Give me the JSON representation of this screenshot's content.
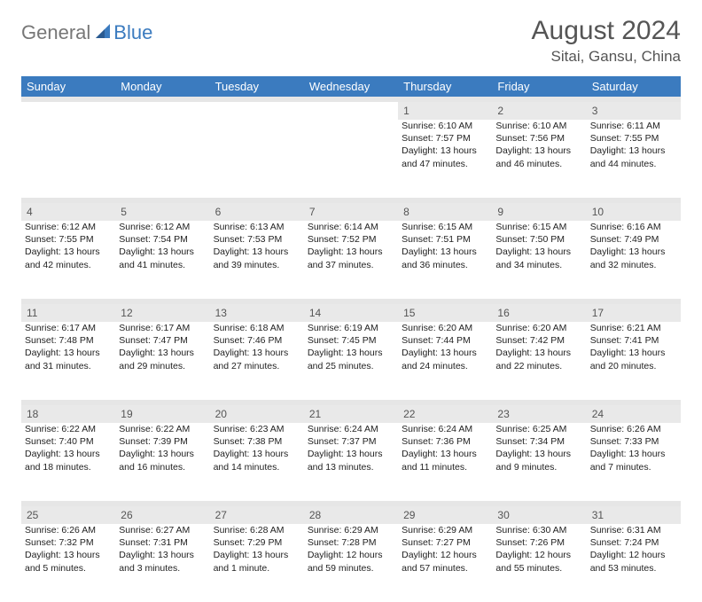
{
  "logo": {
    "general": "General",
    "blue": "Blue"
  },
  "title": "August 2024",
  "location": "Sitai, Gansu, China",
  "colors": {
    "header_bg": "#3b7bbf",
    "header_fg": "#ffffff",
    "spacer_bg": "#e6e6e6",
    "daynum_bg": "#e9e9e9",
    "text": "#333333"
  },
  "weekdays": [
    "Sunday",
    "Monday",
    "Tuesday",
    "Wednesday",
    "Thursday",
    "Friday",
    "Saturday"
  ],
  "weeks": [
    {
      "nums": [
        "",
        "",
        "",
        "",
        "1",
        "2",
        "3"
      ],
      "cells": [
        null,
        null,
        null,
        null,
        {
          "sunrise": "Sunrise: 6:10 AM",
          "sunset": "Sunset: 7:57 PM",
          "day1": "Daylight: 13 hours",
          "day2": "and 47 minutes."
        },
        {
          "sunrise": "Sunrise: 6:10 AM",
          "sunset": "Sunset: 7:56 PM",
          "day1": "Daylight: 13 hours",
          "day2": "and 46 minutes."
        },
        {
          "sunrise": "Sunrise: 6:11 AM",
          "sunset": "Sunset: 7:55 PM",
          "day1": "Daylight: 13 hours",
          "day2": "and 44 minutes."
        }
      ]
    },
    {
      "nums": [
        "4",
        "5",
        "6",
        "7",
        "8",
        "9",
        "10"
      ],
      "cells": [
        {
          "sunrise": "Sunrise: 6:12 AM",
          "sunset": "Sunset: 7:55 PM",
          "day1": "Daylight: 13 hours",
          "day2": "and 42 minutes."
        },
        {
          "sunrise": "Sunrise: 6:12 AM",
          "sunset": "Sunset: 7:54 PM",
          "day1": "Daylight: 13 hours",
          "day2": "and 41 minutes."
        },
        {
          "sunrise": "Sunrise: 6:13 AM",
          "sunset": "Sunset: 7:53 PM",
          "day1": "Daylight: 13 hours",
          "day2": "and 39 minutes."
        },
        {
          "sunrise": "Sunrise: 6:14 AM",
          "sunset": "Sunset: 7:52 PM",
          "day1": "Daylight: 13 hours",
          "day2": "and 37 minutes."
        },
        {
          "sunrise": "Sunrise: 6:15 AM",
          "sunset": "Sunset: 7:51 PM",
          "day1": "Daylight: 13 hours",
          "day2": "and 36 minutes."
        },
        {
          "sunrise": "Sunrise: 6:15 AM",
          "sunset": "Sunset: 7:50 PM",
          "day1": "Daylight: 13 hours",
          "day2": "and 34 minutes."
        },
        {
          "sunrise": "Sunrise: 6:16 AM",
          "sunset": "Sunset: 7:49 PM",
          "day1": "Daylight: 13 hours",
          "day2": "and 32 minutes."
        }
      ]
    },
    {
      "nums": [
        "11",
        "12",
        "13",
        "14",
        "15",
        "16",
        "17"
      ],
      "cells": [
        {
          "sunrise": "Sunrise: 6:17 AM",
          "sunset": "Sunset: 7:48 PM",
          "day1": "Daylight: 13 hours",
          "day2": "and 31 minutes."
        },
        {
          "sunrise": "Sunrise: 6:17 AM",
          "sunset": "Sunset: 7:47 PM",
          "day1": "Daylight: 13 hours",
          "day2": "and 29 minutes."
        },
        {
          "sunrise": "Sunrise: 6:18 AM",
          "sunset": "Sunset: 7:46 PM",
          "day1": "Daylight: 13 hours",
          "day2": "and 27 minutes."
        },
        {
          "sunrise": "Sunrise: 6:19 AM",
          "sunset": "Sunset: 7:45 PM",
          "day1": "Daylight: 13 hours",
          "day2": "and 25 minutes."
        },
        {
          "sunrise": "Sunrise: 6:20 AM",
          "sunset": "Sunset: 7:44 PM",
          "day1": "Daylight: 13 hours",
          "day2": "and 24 minutes."
        },
        {
          "sunrise": "Sunrise: 6:20 AM",
          "sunset": "Sunset: 7:42 PM",
          "day1": "Daylight: 13 hours",
          "day2": "and 22 minutes."
        },
        {
          "sunrise": "Sunrise: 6:21 AM",
          "sunset": "Sunset: 7:41 PM",
          "day1": "Daylight: 13 hours",
          "day2": "and 20 minutes."
        }
      ]
    },
    {
      "nums": [
        "18",
        "19",
        "20",
        "21",
        "22",
        "23",
        "24"
      ],
      "cells": [
        {
          "sunrise": "Sunrise: 6:22 AM",
          "sunset": "Sunset: 7:40 PM",
          "day1": "Daylight: 13 hours",
          "day2": "and 18 minutes."
        },
        {
          "sunrise": "Sunrise: 6:22 AM",
          "sunset": "Sunset: 7:39 PM",
          "day1": "Daylight: 13 hours",
          "day2": "and 16 minutes."
        },
        {
          "sunrise": "Sunrise: 6:23 AM",
          "sunset": "Sunset: 7:38 PM",
          "day1": "Daylight: 13 hours",
          "day2": "and 14 minutes."
        },
        {
          "sunrise": "Sunrise: 6:24 AM",
          "sunset": "Sunset: 7:37 PM",
          "day1": "Daylight: 13 hours",
          "day2": "and 13 minutes."
        },
        {
          "sunrise": "Sunrise: 6:24 AM",
          "sunset": "Sunset: 7:36 PM",
          "day1": "Daylight: 13 hours",
          "day2": "and 11 minutes."
        },
        {
          "sunrise": "Sunrise: 6:25 AM",
          "sunset": "Sunset: 7:34 PM",
          "day1": "Daylight: 13 hours",
          "day2": "and 9 minutes."
        },
        {
          "sunrise": "Sunrise: 6:26 AM",
          "sunset": "Sunset: 7:33 PM",
          "day1": "Daylight: 13 hours",
          "day2": "and 7 minutes."
        }
      ]
    },
    {
      "nums": [
        "25",
        "26",
        "27",
        "28",
        "29",
        "30",
        "31"
      ],
      "cells": [
        {
          "sunrise": "Sunrise: 6:26 AM",
          "sunset": "Sunset: 7:32 PM",
          "day1": "Daylight: 13 hours",
          "day2": "and 5 minutes."
        },
        {
          "sunrise": "Sunrise: 6:27 AM",
          "sunset": "Sunset: 7:31 PM",
          "day1": "Daylight: 13 hours",
          "day2": "and 3 minutes."
        },
        {
          "sunrise": "Sunrise: 6:28 AM",
          "sunset": "Sunset: 7:29 PM",
          "day1": "Daylight: 13 hours",
          "day2": "and 1 minute."
        },
        {
          "sunrise": "Sunrise: 6:29 AM",
          "sunset": "Sunset: 7:28 PM",
          "day1": "Daylight: 12 hours",
          "day2": "and 59 minutes."
        },
        {
          "sunrise": "Sunrise: 6:29 AM",
          "sunset": "Sunset: 7:27 PM",
          "day1": "Daylight: 12 hours",
          "day2": "and 57 minutes."
        },
        {
          "sunrise": "Sunrise: 6:30 AM",
          "sunset": "Sunset: 7:26 PM",
          "day1": "Daylight: 12 hours",
          "day2": "and 55 minutes."
        },
        {
          "sunrise": "Sunrise: 6:31 AM",
          "sunset": "Sunset: 7:24 PM",
          "day1": "Daylight: 12 hours",
          "day2": "and 53 minutes."
        }
      ]
    }
  ]
}
